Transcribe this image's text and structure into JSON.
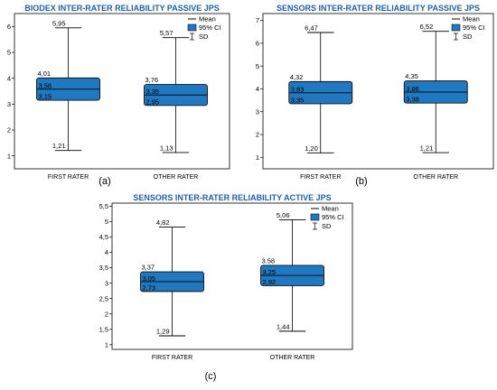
{
  "colors": {
    "box_fill": "#1f78c0",
    "box_stroke": "#111111",
    "title": "#1f5fa8"
  },
  "chart_data": [
    {
      "type": "box",
      "panel_label": "(a)",
      "title": "BIODEX INTER-RATER RELIABILITY PASSIVE JPS",
      "ylim": [
        0.5,
        6.5
      ],
      "yticks": [
        1,
        2,
        3,
        4,
        5,
        6
      ],
      "ytick_labels": [
        "1",
        "2",
        "3",
        "4",
        "5",
        "6"
      ],
      "legend": [
        "Mean",
        "95% CI",
        "SD"
      ],
      "categories": [
        "FIRST RATER",
        "OTHER RATER"
      ],
      "boxes": [
        {
          "category": "FIRST RATER",
          "max": 5.95,
          "ci_upper": 4.01,
          "mean": 3.58,
          "ci_lower": 3.15,
          "min": 1.21,
          "labels": {
            "max": "5,95",
            "ci_upper": "4,01",
            "mean": "3,58",
            "ci_lower": "3,15",
            "min": "1,21"
          }
        },
        {
          "category": "OTHER RATER",
          "max": 5.57,
          "ci_upper": 3.76,
          "mean": 3.35,
          "ci_lower": 2.95,
          "min": 1.13,
          "labels": {
            "max": "5,57",
            "ci_upper": "3,76",
            "mean": "3,35",
            "ci_lower": "2,95",
            "min": "1,13"
          }
        }
      ]
    },
    {
      "type": "box",
      "panel_label": "(b)",
      "title": "SENSORS INTER-RATER RELIABILITY PASSIVE JPS",
      "ylim": [
        0.5,
        7.3
      ],
      "yticks": [
        1,
        2,
        3,
        4,
        5,
        6,
        7
      ],
      "ytick_labels": [
        "1",
        "2",
        "3",
        "4",
        "5",
        "6",
        "7"
      ],
      "legend": [
        "Mean",
        "95% CI",
        "SD"
      ],
      "categories": [
        "FIRST RATER",
        "OTHER RATER"
      ],
      "boxes": [
        {
          "category": "FIRST RATER",
          "max": 6.47,
          "ci_upper": 4.32,
          "mean": 3.83,
          "ci_lower": 3.35,
          "min": 1.2,
          "labels": {
            "max": "6,47",
            "ci_upper": "4,32",
            "mean": "3,83",
            "ci_lower": "3,35",
            "min": "1,20"
          }
        },
        {
          "category": "OTHER RATER",
          "max": 6.52,
          "ci_upper": 4.35,
          "mean": 3.86,
          "ci_lower": 3.38,
          "min": 1.21,
          "labels": {
            "max": "6,52",
            "ci_upper": "4,35",
            "mean": "3,86",
            "ci_lower": "3,38",
            "min": "1,21"
          }
        }
      ]
    },
    {
      "type": "box",
      "panel_label": "(c)",
      "title": "SENSORS INTER-RATER RELIABILITY ACTIVE JPS",
      "ylim": [
        0.85,
        5.6
      ],
      "yticks": [
        1,
        1.5,
        2,
        2.5,
        3,
        3.5,
        4,
        4.5,
        5,
        5.5
      ],
      "ytick_labels": [
        "1",
        "1,5",
        "2",
        "2,5",
        "3",
        "3,5",
        "4",
        "4,5",
        "5",
        "5,5"
      ],
      "legend": [
        "Mean",
        "95% CI",
        "SD"
      ],
      "categories": [
        "FIRST RATER",
        "OTHER RATER"
      ],
      "boxes": [
        {
          "category": "FIRST RATER",
          "max": 4.82,
          "ci_upper": 3.37,
          "mean": 3.05,
          "ci_lower": 2.73,
          "min": 1.29,
          "labels": {
            "max": "4,82",
            "ci_upper": "3,37",
            "mean": "3,05",
            "ci_lower": "2,73",
            "min": "1,29"
          }
        },
        {
          "category": "OTHER RATER",
          "max": 5.06,
          "ci_upper": 3.58,
          "mean": 3.25,
          "ci_lower": 2.92,
          "min": 1.44,
          "labels": {
            "max": "5,06",
            "ci_upper": "3.58",
            "mean": "3,25",
            "ci_lower": "2,92",
            "min": "1,44"
          }
        }
      ]
    }
  ]
}
